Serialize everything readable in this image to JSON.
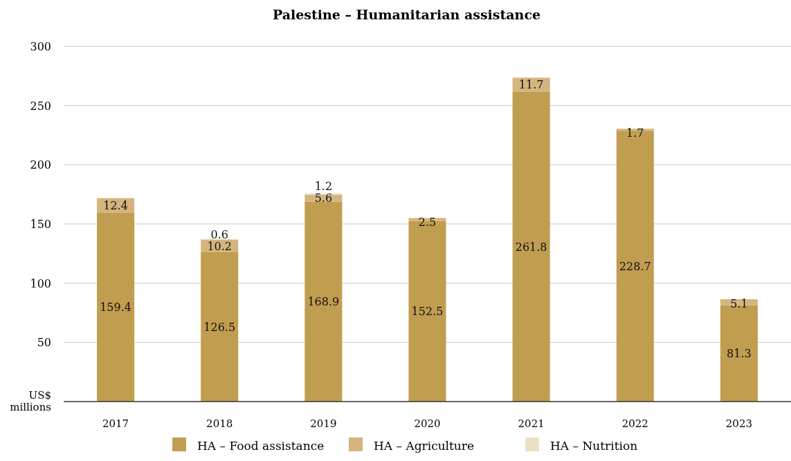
{
  "chart_data": {
    "type": "bar",
    "title": "Palestine –  Humanitarian assistance",
    "ylabel": "US$ millions",
    "categories": [
      "2017",
      "2018",
      "2019",
      "2020",
      "2021",
      "2022",
      "2023"
    ],
    "stacked": true,
    "data_labels": true,
    "grid": "y",
    "legend": "bottom",
    "ylim": [
      0,
      300
    ],
    "yticks": [
      50,
      100,
      150,
      200,
      250,
      300
    ],
    "series": [
      {
        "name": "HA – Food assistance",
        "color": "#c19d50",
        "values": [
          159.4,
          126.5,
          168.9,
          152.5,
          261.8,
          228.7,
          81.3
        ]
      },
      {
        "name": "HA – Agriculture",
        "color": "#d4b57e",
        "values": [
          12.4,
          10.2,
          5.6,
          2.5,
          11.7,
          1.7,
          5.1
        ]
      },
      {
        "name": "HA – Nutrition",
        "color": "#ece0c4",
        "values": [
          null,
          0.6,
          1.2,
          null,
          null,
          null,
          null
        ]
      }
    ]
  }
}
